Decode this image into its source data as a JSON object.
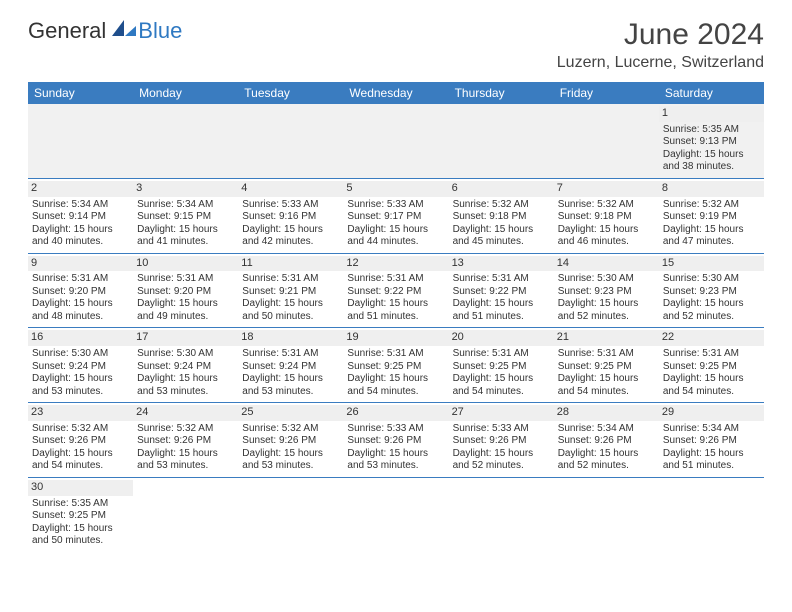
{
  "brand": {
    "part1": "General",
    "part2": "Blue"
  },
  "title": "June 2024",
  "location": "Luzern, Lucerne, Switzerland",
  "colors": {
    "header_bg": "#3a7cc0",
    "header_text": "#ffffff",
    "row_border": "#3a7cc0",
    "daynum_bg": "#efefef",
    "brand_blue": "#2f79c2"
  },
  "day_headers": [
    "Sunday",
    "Monday",
    "Tuesday",
    "Wednesday",
    "Thursday",
    "Friday",
    "Saturday"
  ],
  "weeks": [
    [
      null,
      null,
      null,
      null,
      null,
      null,
      {
        "n": "1",
        "sr": "5:35 AM",
        "ss": "9:13 PM",
        "dl": "15 hours and 38 minutes."
      }
    ],
    [
      {
        "n": "2",
        "sr": "5:34 AM",
        "ss": "9:14 PM",
        "dl": "15 hours and 40 minutes."
      },
      {
        "n": "3",
        "sr": "5:34 AM",
        "ss": "9:15 PM",
        "dl": "15 hours and 41 minutes."
      },
      {
        "n": "4",
        "sr": "5:33 AM",
        "ss": "9:16 PM",
        "dl": "15 hours and 42 minutes."
      },
      {
        "n": "5",
        "sr": "5:33 AM",
        "ss": "9:17 PM",
        "dl": "15 hours and 44 minutes."
      },
      {
        "n": "6",
        "sr": "5:32 AM",
        "ss": "9:18 PM",
        "dl": "15 hours and 45 minutes."
      },
      {
        "n": "7",
        "sr": "5:32 AM",
        "ss": "9:18 PM",
        "dl": "15 hours and 46 minutes."
      },
      {
        "n": "8",
        "sr": "5:32 AM",
        "ss": "9:19 PM",
        "dl": "15 hours and 47 minutes."
      }
    ],
    [
      {
        "n": "9",
        "sr": "5:31 AM",
        "ss": "9:20 PM",
        "dl": "15 hours and 48 minutes."
      },
      {
        "n": "10",
        "sr": "5:31 AM",
        "ss": "9:20 PM",
        "dl": "15 hours and 49 minutes."
      },
      {
        "n": "11",
        "sr": "5:31 AM",
        "ss": "9:21 PM",
        "dl": "15 hours and 50 minutes."
      },
      {
        "n": "12",
        "sr": "5:31 AM",
        "ss": "9:22 PM",
        "dl": "15 hours and 51 minutes."
      },
      {
        "n": "13",
        "sr": "5:31 AM",
        "ss": "9:22 PM",
        "dl": "15 hours and 51 minutes."
      },
      {
        "n": "14",
        "sr": "5:30 AM",
        "ss": "9:23 PM",
        "dl": "15 hours and 52 minutes."
      },
      {
        "n": "15",
        "sr": "5:30 AM",
        "ss": "9:23 PM",
        "dl": "15 hours and 52 minutes."
      }
    ],
    [
      {
        "n": "16",
        "sr": "5:30 AM",
        "ss": "9:24 PM",
        "dl": "15 hours and 53 minutes."
      },
      {
        "n": "17",
        "sr": "5:30 AM",
        "ss": "9:24 PM",
        "dl": "15 hours and 53 minutes."
      },
      {
        "n": "18",
        "sr": "5:31 AM",
        "ss": "9:24 PM",
        "dl": "15 hours and 53 minutes."
      },
      {
        "n": "19",
        "sr": "5:31 AM",
        "ss": "9:25 PM",
        "dl": "15 hours and 54 minutes."
      },
      {
        "n": "20",
        "sr": "5:31 AM",
        "ss": "9:25 PM",
        "dl": "15 hours and 54 minutes."
      },
      {
        "n": "21",
        "sr": "5:31 AM",
        "ss": "9:25 PM",
        "dl": "15 hours and 54 minutes."
      },
      {
        "n": "22",
        "sr": "5:31 AM",
        "ss": "9:25 PM",
        "dl": "15 hours and 54 minutes."
      }
    ],
    [
      {
        "n": "23",
        "sr": "5:32 AM",
        "ss": "9:26 PM",
        "dl": "15 hours and 54 minutes."
      },
      {
        "n": "24",
        "sr": "5:32 AM",
        "ss": "9:26 PM",
        "dl": "15 hours and 53 minutes."
      },
      {
        "n": "25",
        "sr": "5:32 AM",
        "ss": "9:26 PM",
        "dl": "15 hours and 53 minutes."
      },
      {
        "n": "26",
        "sr": "5:33 AM",
        "ss": "9:26 PM",
        "dl": "15 hours and 53 minutes."
      },
      {
        "n": "27",
        "sr": "5:33 AM",
        "ss": "9:26 PM",
        "dl": "15 hours and 52 minutes."
      },
      {
        "n": "28",
        "sr": "5:34 AM",
        "ss": "9:26 PM",
        "dl": "15 hours and 52 minutes."
      },
      {
        "n": "29",
        "sr": "5:34 AM",
        "ss": "9:26 PM",
        "dl": "15 hours and 51 minutes."
      }
    ],
    [
      {
        "n": "30",
        "sr": "5:35 AM",
        "ss": "9:25 PM",
        "dl": "15 hours and 50 minutes."
      },
      null,
      null,
      null,
      null,
      null,
      null
    ]
  ],
  "labels": {
    "sunrise_prefix": "Sunrise: ",
    "sunset_prefix": "Sunset: ",
    "daylight_prefix": "Daylight: "
  }
}
